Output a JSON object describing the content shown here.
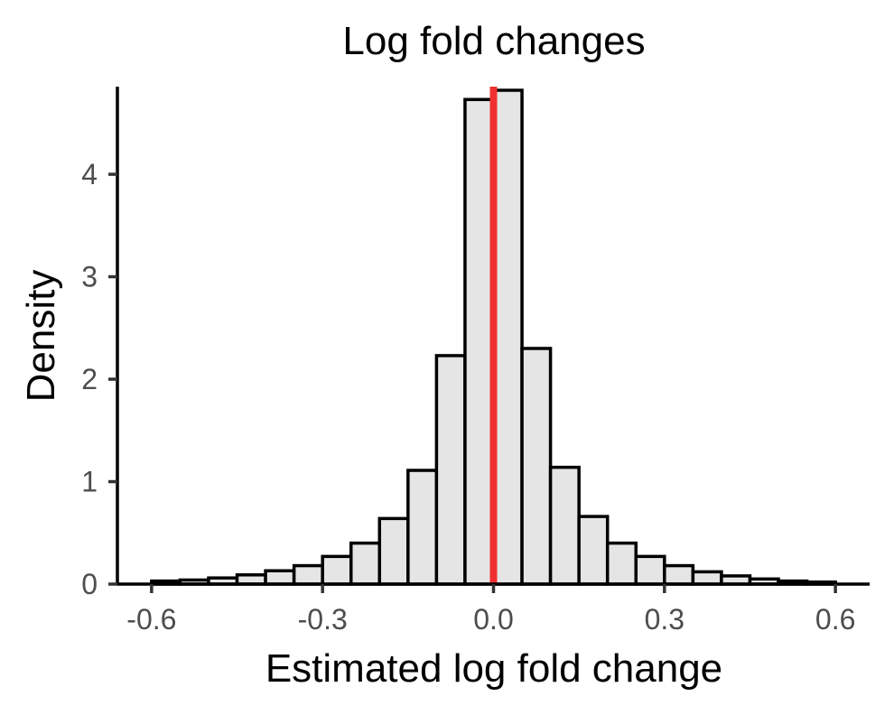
{
  "chart_data": {
    "type": "bar",
    "title": "Log fold changes",
    "xlabel": "Estimated log fold change",
    "ylabel": "Density",
    "xlim": [
      -0.66,
      0.66
    ],
    "ylim": [
      0,
      4.82
    ],
    "x_ticks": [
      -0.6,
      -0.3,
      0.0,
      0.3,
      0.6
    ],
    "x_tick_labels": [
      "-0.6",
      "-0.3",
      "0.0",
      "0.3",
      "0.6"
    ],
    "y_ticks": [
      0,
      1,
      2,
      3,
      4
    ],
    "y_tick_labels": [
      "0",
      "1",
      "2",
      "3",
      "4"
    ],
    "bin_width": 0.05,
    "bins": [
      {
        "x0": -0.6,
        "x1": -0.55,
        "density": 0.03
      },
      {
        "x0": -0.55,
        "x1": -0.5,
        "density": 0.04
      },
      {
        "x0": -0.5,
        "x1": -0.45,
        "density": 0.06
      },
      {
        "x0": -0.45,
        "x1": -0.4,
        "density": 0.09
      },
      {
        "x0": -0.4,
        "x1": -0.35,
        "density": 0.13
      },
      {
        "x0": -0.35,
        "x1": -0.3,
        "density": 0.18
      },
      {
        "x0": -0.3,
        "x1": -0.25,
        "density": 0.27
      },
      {
        "x0": -0.25,
        "x1": -0.2,
        "density": 0.4
      },
      {
        "x0": -0.2,
        "x1": -0.15,
        "density": 0.64
      },
      {
        "x0": -0.15,
        "x1": -0.1,
        "density": 1.11
      },
      {
        "x0": -0.1,
        "x1": -0.05,
        "density": 2.23
      },
      {
        "x0": -0.05,
        "x1": 0.0,
        "density": 4.73
      },
      {
        "x0": 0.0,
        "x1": 0.05,
        "density": 4.82
      },
      {
        "x0": 0.05,
        "x1": 0.1,
        "density": 2.3
      },
      {
        "x0": 0.1,
        "x1": 0.15,
        "density": 1.14
      },
      {
        "x0": 0.15,
        "x1": 0.2,
        "density": 0.66
      },
      {
        "x0": 0.2,
        "x1": 0.25,
        "density": 0.4
      },
      {
        "x0": 0.25,
        "x1": 0.3,
        "density": 0.27
      },
      {
        "x0": 0.3,
        "x1": 0.35,
        "density": 0.18
      },
      {
        "x0": 0.35,
        "x1": 0.4,
        "density": 0.12
      },
      {
        "x0": 0.4,
        "x1": 0.45,
        "density": 0.08
      },
      {
        "x0": 0.45,
        "x1": 0.5,
        "density": 0.05
      },
      {
        "x0": 0.5,
        "x1": 0.55,
        "density": 0.03
      },
      {
        "x0": 0.55,
        "x1": 0.6,
        "density": 0.02
      }
    ],
    "reference_line": {
      "x": 0.0,
      "color": "#f03030"
    },
    "bar_fill": "#e5e5e5",
    "bar_outline": "#000000",
    "grid": false,
    "legend": "none"
  }
}
